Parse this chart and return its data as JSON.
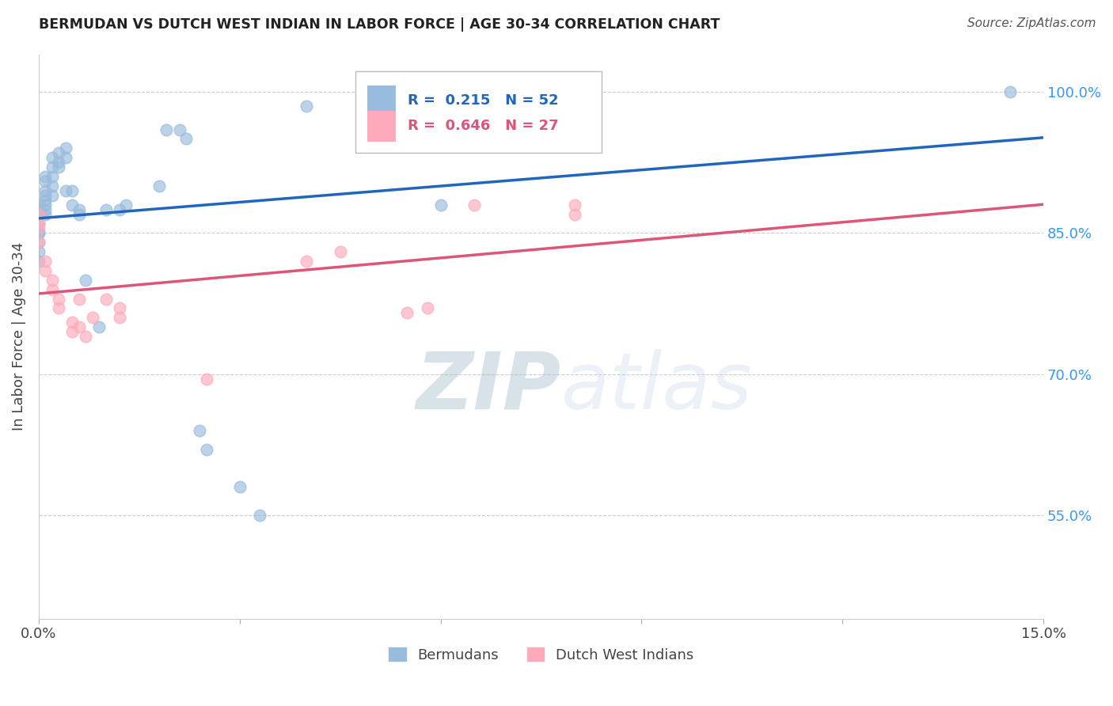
{
  "title": "BERMUDAN VS DUTCH WEST INDIAN IN LABOR FORCE | AGE 30-34 CORRELATION CHART",
  "source": "Source: ZipAtlas.com",
  "ylabel": "In Labor Force | Age 30-34",
  "legend_blue_label": "Bermudans",
  "legend_pink_label": "Dutch West Indians",
  "r_blue": 0.215,
  "n_blue": 52,
  "r_pink": 0.646,
  "n_pink": 27,
  "xlim": [
    0.0,
    0.15
  ],
  "ylim": [
    0.44,
    1.04
  ],
  "yticks": [
    0.55,
    0.7,
    0.85,
    1.0
  ],
  "ytick_labels": [
    "55.0%",
    "70.0%",
    "85.0%",
    "100.0%"
  ],
  "xticks": [
    0.0,
    0.03,
    0.06,
    0.09,
    0.12,
    0.15
  ],
  "xtick_labels": [
    "0.0%",
    "",
    "",
    "",
    "",
    "15.0%"
  ],
  "blue_scatter_color": "#99BBDD",
  "pink_scatter_color": "#FFAABB",
  "blue_line_color": "#2266BB",
  "pink_line_color": "#DD5577",
  "watermark_zip": "ZIP",
  "watermark_atlas": "atlas",
  "blue_points_x": [
    0.0,
    0.0,
    0.0,
    0.0,
    0.0,
    0.0,
    0.0,
    0.0,
    0.0,
    0.0,
    0.001,
    0.001,
    0.001,
    0.001,
    0.001,
    0.001,
    0.001,
    0.001,
    0.002,
    0.002,
    0.002,
    0.002,
    0.002,
    0.003,
    0.003,
    0.003,
    0.004,
    0.004,
    0.004,
    0.005,
    0.005,
    0.006,
    0.006,
    0.007,
    0.009,
    0.01,
    0.012,
    0.013,
    0.018,
    0.019,
    0.021,
    0.022,
    0.024,
    0.025,
    0.03,
    0.033,
    0.04,
    0.05,
    0.06,
    0.067,
    0.08,
    0.145
  ],
  "blue_points_y": [
    0.875,
    0.87,
    0.87,
    0.88,
    0.86,
    0.85,
    0.85,
    0.84,
    0.83,
    0.82,
    0.91,
    0.905,
    0.895,
    0.89,
    0.885,
    0.88,
    0.875,
    0.87,
    0.93,
    0.92,
    0.91,
    0.9,
    0.89,
    0.935,
    0.925,
    0.92,
    0.94,
    0.93,
    0.895,
    0.895,
    0.88,
    0.875,
    0.87,
    0.8,
    0.75,
    0.875,
    0.875,
    0.88,
    0.9,
    0.96,
    0.96,
    0.95,
    0.64,
    0.62,
    0.58,
    0.55,
    0.985,
    0.985,
    0.88,
    0.985,
    0.99,
    1.0
  ],
  "pink_points_x": [
    0.0,
    0.0,
    0.0,
    0.0,
    0.001,
    0.001,
    0.002,
    0.002,
    0.003,
    0.003,
    0.005,
    0.005,
    0.006,
    0.006,
    0.007,
    0.008,
    0.01,
    0.012,
    0.012,
    0.025,
    0.04,
    0.045,
    0.055,
    0.058,
    0.065,
    0.08,
    0.08
  ],
  "pink_points_y": [
    0.87,
    0.86,
    0.855,
    0.84,
    0.82,
    0.81,
    0.8,
    0.79,
    0.78,
    0.77,
    0.755,
    0.745,
    0.75,
    0.78,
    0.74,
    0.76,
    0.78,
    0.77,
    0.76,
    0.695,
    0.82,
    0.83,
    0.765,
    0.77,
    0.88,
    0.88,
    0.87
  ]
}
